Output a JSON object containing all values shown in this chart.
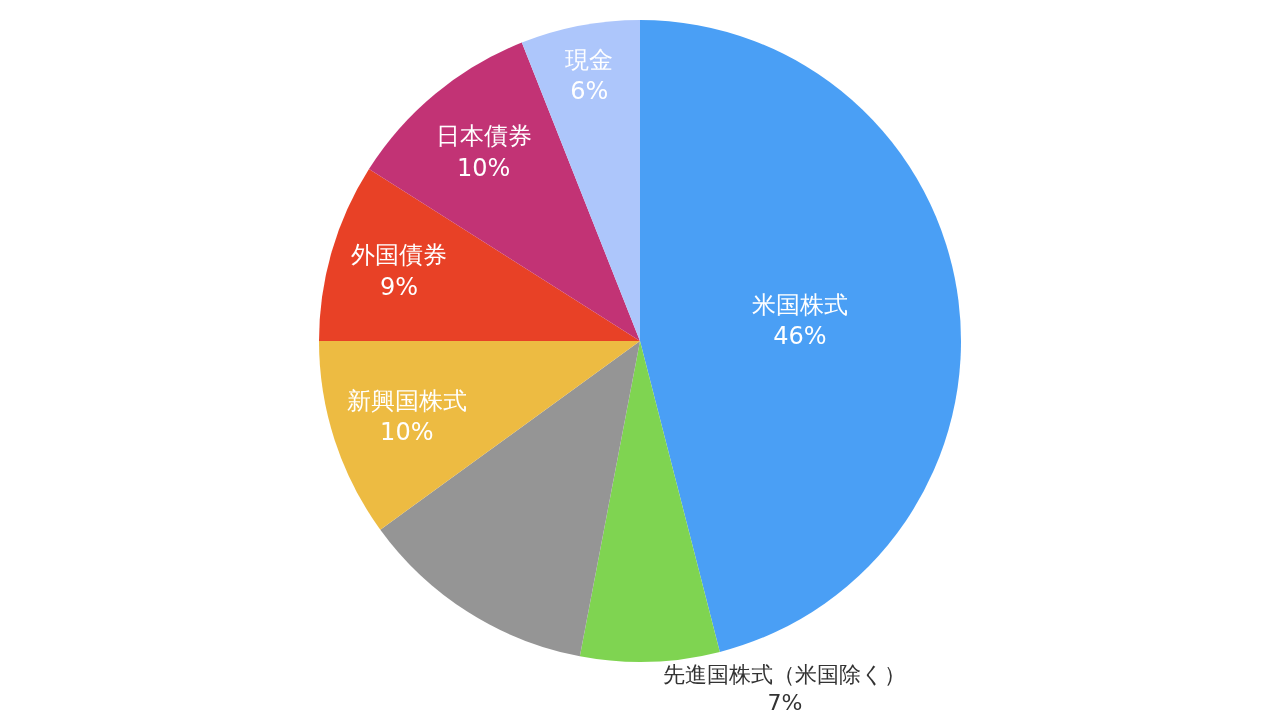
{
  "chart_data": {
    "type": "pie",
    "categories": [
      "米国株式",
      "先進国株式（米国除く）",
      null,
      "新興国株式",
      "外国債券",
      "日本債券",
      "現金"
    ],
    "values": [
      46,
      7,
      12,
      10,
      9,
      10,
      6
    ],
    "colors": [
      "#4a9ff5",
      "#7fd451",
      "#959595",
      "#edbb42",
      "#e84126",
      "#c23375",
      "#adc6fb"
    ],
    "value_labels": [
      "46%",
      "7%",
      null,
      "10%",
      "9%",
      "10%",
      "6%"
    ]
  }
}
